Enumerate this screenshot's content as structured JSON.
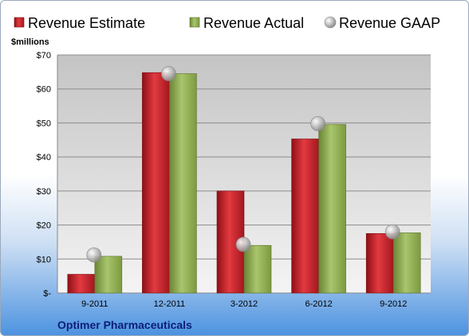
{
  "chart_data": {
    "type": "bar",
    "categories": [
      "9-2011",
      "12-2011",
      "3-2012",
      "6-2012",
      "9-2012"
    ],
    "series": [
      {
        "name": "Revenue Estimate",
        "values": [
          5.5,
          64.8,
          30.0,
          45.3,
          17.5
        ],
        "color": "#c0262d"
      },
      {
        "name": "Revenue Actual",
        "values": [
          10.8,
          64.5,
          14.0,
          49.6,
          17.7
        ],
        "color": "#8fac52"
      },
      {
        "name": "Revenue GAAP",
        "values": [
          11.2,
          64.5,
          14.3,
          49.8,
          18.0
        ],
        "color": "#a8a8a8",
        "marker": "circle"
      }
    ],
    "ylabel": "$millions",
    "ylim": [
      0,
      70
    ],
    "yticks": [
      0,
      10,
      20,
      30,
      40,
      50,
      60,
      70
    ],
    "ytick_labels": [
      "$-",
      "$10",
      "$20",
      "$30",
      "$40",
      "$50",
      "$60",
      "$70"
    ],
    "grid": true,
    "legend": "top",
    "footer": "Optimer Pharmaceuticals"
  }
}
